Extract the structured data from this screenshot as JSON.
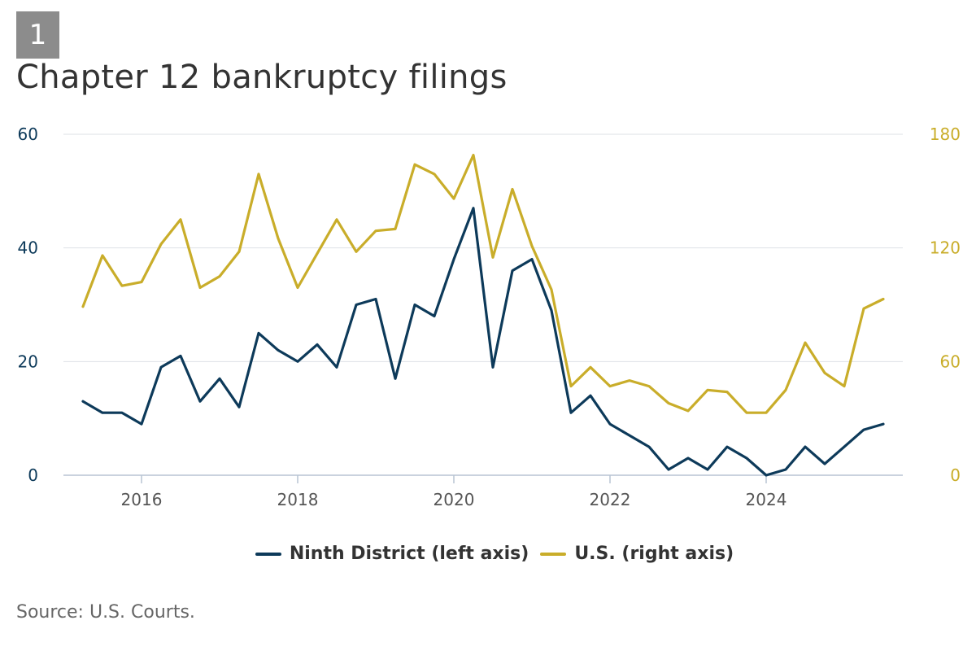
{
  "header": {
    "figure_number": "1",
    "title": "Chapter 12 bankruptcy filings"
  },
  "source": "Source: U.S. Courts.",
  "colors": {
    "ninth": "#0d3a5a",
    "us": "#c9ad2a",
    "grid": "#dde1e6",
    "axis_line": "#b8c4d3",
    "tick_text": "#555555"
  },
  "chart_data": {
    "type": "line",
    "title": "Chapter 12 bankruptcy filings",
    "x_start": 2015.25,
    "x_step": 0.25,
    "xlim": [
      2015.0,
      2025.75
    ],
    "xticks": [
      2016,
      2018,
      2020,
      2022,
      2024
    ],
    "xtick_labels": [
      "2016",
      "2018",
      "2020",
      "2022",
      "2024"
    ],
    "left_axis": {
      "ylim": [
        0,
        60
      ],
      "ticks": [
        0,
        20,
        40,
        60
      ],
      "tick_labels": [
        "0",
        "20",
        "40",
        "60"
      ]
    },
    "right_axis": {
      "ylim": [
        0,
        180
      ],
      "ticks": [
        0,
        60,
        120,
        180
      ],
      "tick_labels": [
        "0",
        "60",
        "120",
        "180"
      ]
    },
    "series": [
      {
        "name": "Ninth District (left axis)",
        "axis": "left",
        "color": "#0d3a5a",
        "values": [
          13,
          11,
          11,
          9,
          19,
          21,
          13,
          17,
          12,
          25,
          22,
          20,
          23,
          19,
          30,
          31,
          17,
          30,
          28,
          38,
          47,
          19,
          36,
          38,
          29,
          11,
          14,
          9,
          7,
          5,
          1,
          3,
          1,
          5,
          3,
          0,
          1,
          5,
          2,
          5,
          8,
          9
        ]
      },
      {
        "name": "U.S. (right axis)",
        "axis": "right",
        "color": "#c9ad2a",
        "values": [
          89,
          116,
          100,
          102,
          122,
          135,
          99,
          105,
          118,
          159,
          125,
          99,
          117,
          135,
          118,
          129,
          130,
          164,
          159,
          146,
          169,
          115,
          151,
          121,
          98,
          47,
          57,
          47,
          50,
          47,
          38,
          34,
          45,
          44,
          33,
          33,
          45,
          70,
          54,
          47,
          88,
          93
        ]
      }
    ],
    "legend": [
      "Ninth District (left axis)",
      "U.S. (right axis)"
    ],
    "legend_position": "bottom-center"
  }
}
